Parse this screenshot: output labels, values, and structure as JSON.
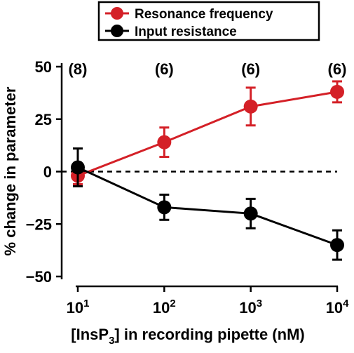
{
  "chart_data": {
    "type": "line",
    "x_scale": "log",
    "x": [
      10,
      100,
      1000,
      10000
    ],
    "x_tick_labels": [
      {
        "base": "10",
        "exp": "1"
      },
      {
        "base": "10",
        "exp": "2"
      },
      {
        "base": "10",
        "exp": "3"
      },
      {
        "base": "10",
        "exp": "4"
      }
    ],
    "xlabel": {
      "before": "[InsP",
      "sub": "3",
      "after": "] in recording pipette (nM)"
    },
    "ylabel": "% change in parameter",
    "ylim": [
      -50,
      50
    ],
    "y_ticks": [
      50,
      25,
      0,
      -25,
      -50
    ],
    "y_tick_labels": [
      "50",
      "25",
      "0",
      "−25",
      "−50"
    ],
    "reference_line_y": 0,
    "n_counts": [
      "(8)",
      "(6)",
      "(6)",
      "(6)"
    ],
    "legend_position": "top",
    "series": [
      {
        "name": "Resonance frequency",
        "color": "#d42027",
        "values": [
          -2,
          14,
          31,
          38
        ],
        "error": [
          4,
          7,
          9,
          5
        ]
      },
      {
        "name": "Input resistance",
        "color": "#000000",
        "values": [
          2,
          -17,
          -20,
          -35
        ],
        "error": [
          9,
          6,
          7,
          7
        ]
      }
    ]
  }
}
